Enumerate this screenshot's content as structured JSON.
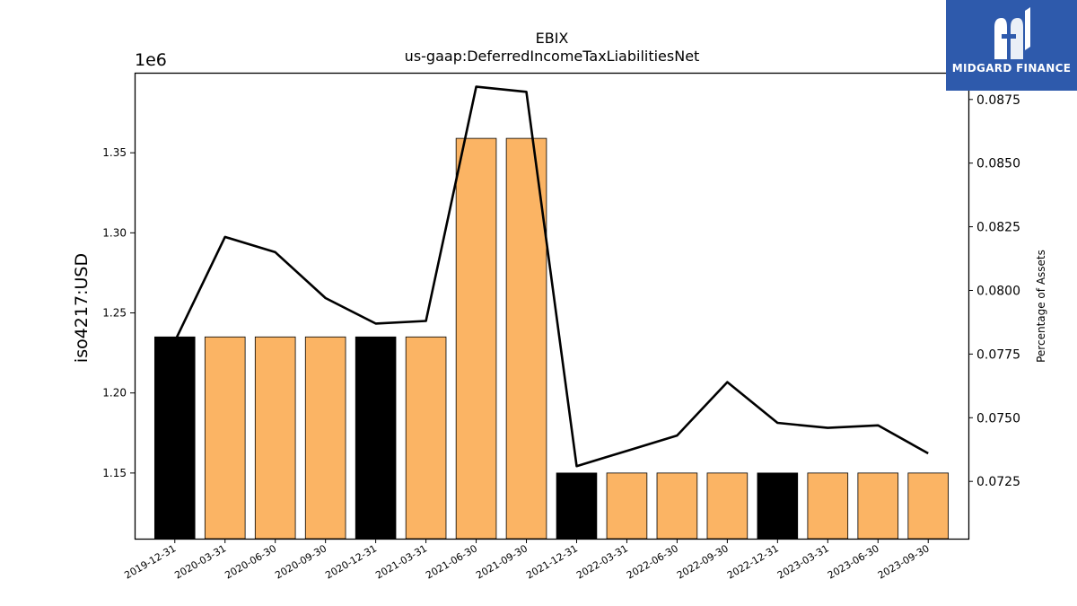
{
  "chart_data": {
    "type": "bar",
    "title": "EBIX",
    "subtitle": "us-gaap:DeferredIncomeTaxLiabilitiesNet",
    "ylabel": "iso4217:USD",
    "y_offset_label": "1e6",
    "y2label": "Percentage of Assets",
    "categories": [
      "2019-12-31",
      "2020-03-31",
      "2020-06-30",
      "2020-09-30",
      "2020-12-31",
      "2021-03-31",
      "2021-06-30",
      "2021-09-30",
      "2021-12-31",
      "2022-03-31",
      "2022-06-30",
      "2022-09-30",
      "2022-12-31",
      "2023-03-31",
      "2023-06-30",
      "2023-09-30"
    ],
    "series": [
      {
        "type": "bar",
        "axis": "left",
        "values": [
          1235000,
          1235000,
          1235000,
          1235000,
          1235000,
          1235000,
          1359000,
          1359000,
          1150000,
          1150000,
          1150000,
          1150000,
          1150000,
          1150000,
          1150000,
          1150000
        ],
        "annual_flags": [
          true,
          false,
          false,
          false,
          true,
          false,
          false,
          false,
          true,
          false,
          false,
          false,
          true,
          false,
          false,
          false
        ]
      },
      {
        "type": "line",
        "axis": "right",
        "values": [
          0.078,
          0.0821,
          0.0815,
          0.0797,
          0.0787,
          0.0788,
          0.088,
          0.0878,
          0.0731,
          0.0737,
          0.0743,
          0.0764,
          0.0748,
          0.0746,
          0.0747,
          0.0736
        ]
      }
    ],
    "ylim": [
      1109000,
      1400000
    ],
    "y2lim": [
      0.07025,
      0.08855
    ],
    "yticks": [
      1.15,
      1.2,
      1.25,
      1.3,
      1.35
    ],
    "ytick_labels": [
      "1.15",
      "1.20",
      "1.25",
      "1.30",
      "1.35"
    ],
    "y2ticks": [
      0.0725,
      0.075,
      0.0775,
      0.08,
      0.0825,
      0.085,
      0.0875
    ],
    "y2tick_labels": [
      "0.0725",
      "0.0750",
      "0.0775",
      "0.0800",
      "0.0825",
      "0.0850",
      "0.0875"
    ],
    "grid": false,
    "colors": {
      "quarterly_bar": "#fbb464",
      "annual_bar": "#000000",
      "line": "#000000"
    }
  },
  "logo": {
    "text": "MIDGARD FINANCE",
    "background": "#2e5aac",
    "icon": "midgard-logo-icon"
  }
}
